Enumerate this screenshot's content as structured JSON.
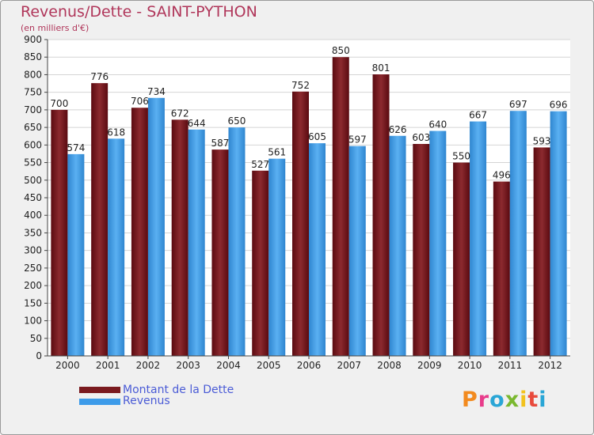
{
  "title": "Revenus/Dette - SAINT-PYTHON",
  "subtitle": "(en milliers d'€)",
  "logo": {
    "text": "Proxiti",
    "colors": [
      "#f28a1e",
      "#e83c8b",
      "#2aa6d6",
      "#7ab82f",
      "#f2c21e",
      "#e84a3c",
      "#2aa6d6"
    ]
  },
  "legend": [
    {
      "label": "Montant de la Dette",
      "color": "#7a1a1f"
    },
    {
      "label": "Revenus",
      "color": "#3d9be9"
    }
  ],
  "chart_data": {
    "type": "bar",
    "title": "Revenus/Dette - SAINT-PYTHON",
    "subtitle": "(en milliers d'€)",
    "categories": [
      "2000",
      "2001",
      "2002",
      "2003",
      "2004",
      "2005",
      "2006",
      "2007",
      "2008",
      "2009",
      "2010",
      "2011",
      "2012"
    ],
    "series": [
      {
        "name": "Montant de la Dette",
        "color": "#7a1a1f",
        "values": [
          700,
          776,
          706,
          672,
          587,
          527,
          752,
          850,
          801,
          603,
          550,
          496,
          593
        ]
      },
      {
        "name": "Revenus",
        "color": "#3d9be9",
        "values": [
          574,
          618,
          734,
          644,
          650,
          561,
          605,
          597,
          626,
          640,
          667,
          697,
          696
        ]
      }
    ],
    "ylim": [
      0,
      900
    ],
    "yticks": [
      0,
      50,
      100,
      150,
      200,
      250,
      300,
      350,
      400,
      450,
      500,
      550,
      600,
      650,
      700,
      750,
      800,
      850,
      900
    ],
    "grid": true,
    "legend_position": "bottom-left"
  }
}
